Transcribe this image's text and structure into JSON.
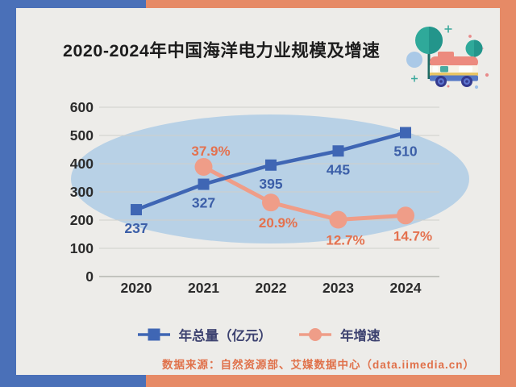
{
  "frame": {
    "accent_blue": "#4a70b8",
    "accent_orange": "#e68a66"
  },
  "panel": {
    "background": "#edece9"
  },
  "header": {
    "title_color": "#1d1d1d"
  },
  "footer": {
    "source_text": "数据来源：自然资源部、艾媒数据中心（data.iimedia.cn）",
    "color": "#e0714a"
  },
  "illustration": {
    "name": "bus-and-trees",
    "description": "decorative teal trees and pink bus"
  },
  "chart_data": {
    "type": "line",
    "title": "2020-2024年中国海洋电力业规模及增速",
    "categories": [
      "2020",
      "2021",
      "2022",
      "2023",
      "2024"
    ],
    "series": [
      {
        "name": "年总量（亿元）",
        "axis": "left",
        "marker": "square",
        "color": "#3f66b4",
        "label_color": "#3c5fa8",
        "values": [
          237,
          327,
          395,
          445,
          510
        ],
        "labels": [
          "237",
          "327",
          "395",
          "445",
          "510"
        ]
      },
      {
        "name": "年增速",
        "axis": "percent",
        "marker": "circle",
        "color": "#ef9d88",
        "label_color": "#e4714e",
        "values": [
          null,
          37.9,
          20.9,
          12.7,
          14.7
        ],
        "labels": [
          null,
          "37.9%",
          "20.9%",
          "12.7%",
          "14.7%"
        ]
      }
    ],
    "left_axis": {
      "ticks": [
        0,
        100,
        200,
        300,
        400,
        500,
        600
      ],
      "range": [
        0,
        600
      ]
    },
    "percent_axis": {
      "hidden": true,
      "approx_range": [
        0,
        90
      ]
    },
    "grid": true,
    "grid_color": "#cfd0cb",
    "tick_color": "#2b2b2b",
    "legend_position": "bottom",
    "legend": {
      "text_color": "#3d4270"
    },
    "background_ellipse_color": "#b8d1e6"
  }
}
